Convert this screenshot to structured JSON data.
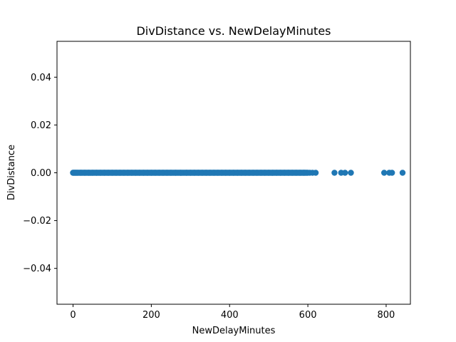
{
  "chart_data": {
    "type": "scatter",
    "title": "DivDistance vs. NewDelayMinutes",
    "xlabel": "NewDelayMinutes",
    "ylabel": "DivDistance",
    "xlim": [
      -41,
      862
    ],
    "ylim": [
      -0.055,
      0.055
    ],
    "xticks": [
      0,
      200,
      400,
      600,
      800
    ],
    "yticks": [
      -0.04,
      -0.02,
      0.0,
      0.02,
      0.04
    ],
    "xtick_labels": [
      "0",
      "200",
      "400",
      "600",
      "800"
    ],
    "ytick_labels": [
      "−0.04",
      "−0.02",
      "0.00",
      "0.02",
      "0.04"
    ],
    "grid": false,
    "series": [
      {
        "color": "#1f77b4",
        "dense_x_range": [
          0,
          600
        ],
        "x": [
          0,
          5,
          10,
          20,
          30,
          40,
          50,
          60,
          70,
          80,
          90,
          100,
          110,
          120,
          130,
          140,
          150,
          160,
          170,
          180,
          190,
          200,
          210,
          220,
          230,
          240,
          250,
          262,
          275,
          290,
          300,
          310,
          320,
          330,
          340,
          350,
          360,
          370,
          380,
          390,
          400,
          410,
          420,
          430,
          440,
          450,
          460,
          470,
          480,
          490,
          500,
          510,
          520,
          530,
          540,
          550,
          560,
          570,
          580,
          590,
          605,
          612,
          620,
          668,
          685,
          695,
          710,
          795,
          808,
          815,
          842
        ],
        "y": [
          0,
          0,
          0,
          0,
          0,
          0,
          0,
          0,
          0,
          0,
          0,
          0,
          0,
          0,
          0,
          0,
          0,
          0,
          0,
          0,
          0,
          0,
          0,
          0,
          0,
          0,
          0,
          0,
          0,
          0,
          0,
          0,
          0,
          0,
          0,
          0,
          0,
          0,
          0,
          0,
          0,
          0,
          0,
          0,
          0,
          0,
          0,
          0,
          0,
          0,
          0,
          0,
          0,
          0,
          0,
          0,
          0,
          0,
          0,
          0,
          0,
          0,
          0,
          0,
          0,
          0,
          0,
          0,
          0,
          0,
          0
        ]
      }
    ]
  }
}
